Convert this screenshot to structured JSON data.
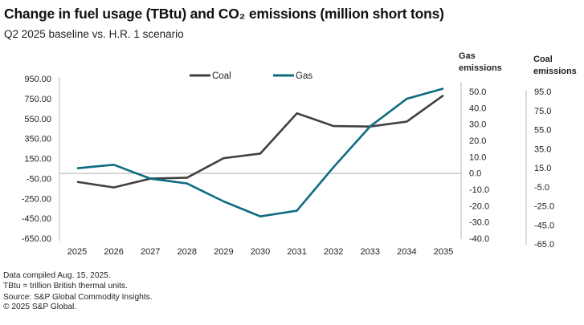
{
  "chart_data": {
    "type": "line",
    "title": "Change in fuel usage (TBtu) and CO₂ emissions (million short tons)",
    "subtitle": "Q2 2025 baseline vs. H.R. 1 scenario",
    "xlabel": "",
    "ylabel": "",
    "categories": [
      "2025",
      "2026",
      "2027",
      "2028",
      "2029",
      "2030",
      "2031",
      "2032",
      "2033",
      "2034",
      "2035"
    ],
    "series": [
      {
        "name": "Coal",
        "color": "#404040",
        "values": [
          -84,
          -140,
          -52,
          -42,
          153,
          199,
          603,
          475,
          470,
          520,
          783
        ]
      },
      {
        "name": "Gas",
        "color": "#0d6b82",
        "values": [
          52,
          87,
          -52,
          -100,
          -280,
          -430,
          -373,
          63,
          472,
          748,
          850
        ]
      }
    ],
    "ylim": [
      -650,
      950
    ],
    "y_ticks": [
      "950.00",
      "750.00",
      "550.00",
      "350.00",
      "150.00",
      "-50.00",
      "-250.00",
      "-450.00",
      "-650.00"
    ],
    "y_tick_values": [
      950,
      750,
      550,
      350,
      150,
      -50,
      -250,
      -450,
      -650
    ],
    "secondary_axes": [
      {
        "title_line1": "Gas",
        "title_line2": "emissions",
        "ylim": [
          -40,
          50
        ],
        "ticks": [
          "50.0",
          "40.0",
          "30.0",
          "20.0",
          "10.0",
          "0.0",
          "-10.0",
          "-20.0",
          "-30.0",
          "-40.0"
        ],
        "tick_values": [
          50,
          40,
          30,
          20,
          10,
          0,
          -10,
          -20,
          -30,
          -40
        ]
      },
      {
        "title_line1": "Coal",
        "title_line2": "emissions",
        "ylim": [
          -65,
          95
        ],
        "ticks": [
          "95.0",
          "75.0",
          "55.0",
          "35.0",
          "15.0",
          "-5.0",
          "-25.0",
          "-45.0",
          "-65.0"
        ],
        "tick_values": [
          95,
          75,
          55,
          35,
          15,
          -5,
          -25,
          -45,
          -65
        ]
      }
    ],
    "legend_position": "top-center",
    "grid": false,
    "zero_line": true
  },
  "footnotes": [
    "Data compiled Aug. 15, 2025.",
    "TBtu = trillion British thermal units.",
    "Source: S&P Global Commodity Insights.",
    "© 2025 S&P Global."
  ]
}
